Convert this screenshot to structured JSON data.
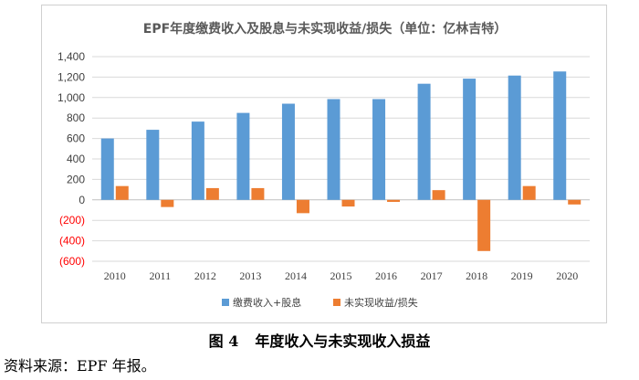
{
  "chart_data": {
    "type": "bar",
    "title": "EPF年度缴费收入及股息与未实现收益/损失（单位：亿林吉特）",
    "categories": [
      "2010",
      "2011",
      "2012",
      "2013",
      "2014",
      "2015",
      "2016",
      "2017",
      "2018",
      "2019",
      "2020"
    ],
    "series": [
      {
        "name": "缴费收入+股息",
        "color": "#5B9BD5",
        "values": [
          600,
          685,
          765,
          850,
          940,
          985,
          985,
          1135,
          1185,
          1215,
          1255
        ]
      },
      {
        "name": "未实现收益/损失",
        "color": "#ED7D31",
        "values": [
          135,
          -70,
          115,
          115,
          -130,
          -65,
          -20,
          95,
          -500,
          135,
          -45
        ]
      }
    ],
    "ylim": [
      -600,
      1400
    ],
    "yticks": [
      -600,
      -400,
      -200,
      0,
      200,
      400,
      600,
      800,
      1000,
      1200,
      1400
    ],
    "ytick_labels": [
      "(600)",
      "(400)",
      "(200)",
      "0",
      "200",
      "400",
      "600",
      "800",
      "1,000",
      "1,200",
      "1,400"
    ],
    "negative_tick_color": "#FF0000",
    "grid": true,
    "legend_position": "bottom"
  },
  "caption": {
    "figure_no": "图 4",
    "text": "年度收入与未实现收入损益"
  },
  "source_note": "资料来源：EPF 年报。"
}
